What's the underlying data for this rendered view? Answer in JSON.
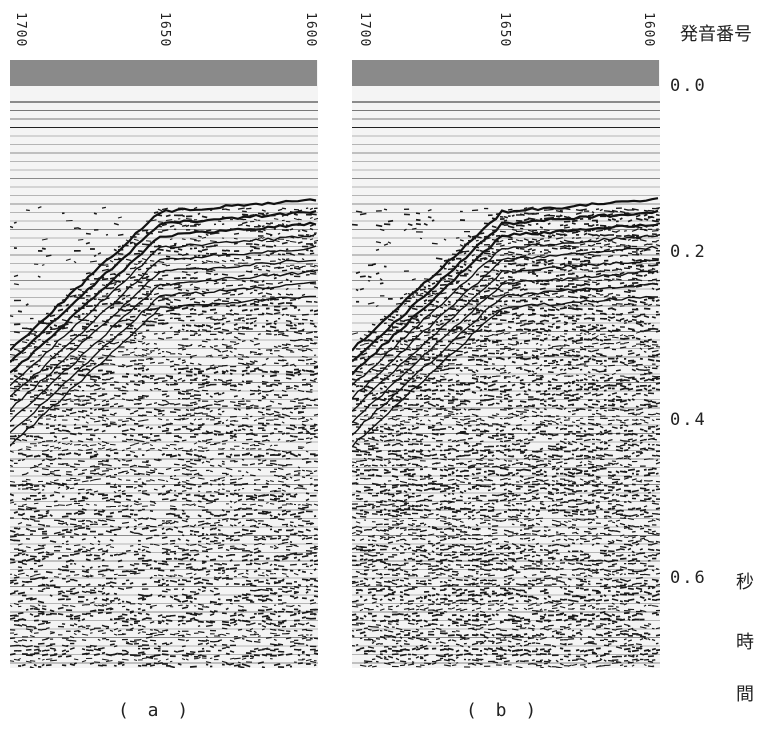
{
  "shot_axis_title": "発音番号",
  "time_axis_title": [
    "秒",
    "時",
    "間"
  ],
  "shot_labels": [
    "1700",
    "1650",
    "1600"
  ],
  "time_labels": [
    "0.0",
    "0.2",
    "0.4",
    "0.6"
  ],
  "panels": [
    {
      "caption": "( a )"
    },
    {
      "caption": "( b )"
    }
  ]
}
